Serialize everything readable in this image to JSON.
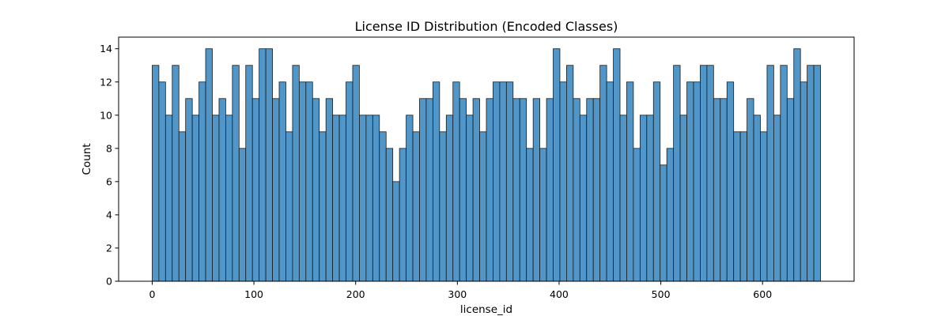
{
  "chart_data": {
    "type": "bar",
    "title": "License ID Distribution (Encoded Classes)",
    "xlabel": "license_id",
    "ylabel": "Count",
    "xlim": [
      -33,
      690
    ],
    "ylim": [
      0,
      14.7
    ],
    "x_ticks": [
      0,
      100,
      200,
      300,
      400,
      500,
      600
    ],
    "y_ticks": [
      0,
      2,
      4,
      6,
      8,
      10,
      12,
      14
    ],
    "grid": false,
    "legend": "none",
    "bins": 100,
    "bin_range": [
      0,
      657
    ],
    "values": [
      13,
      12,
      10,
      13,
      9,
      11,
      10,
      12,
      14,
      10,
      11,
      10,
      13,
      8,
      13,
      11,
      14,
      14,
      11,
      12,
      9,
      13,
      12,
      12,
      11,
      9,
      11,
      10,
      10,
      12,
      13,
      10,
      10,
      10,
      9,
      8,
      6,
      8,
      10,
      9,
      11,
      11,
      12,
      9,
      10,
      12,
      11,
      10,
      11,
      9,
      11,
      12,
      12,
      12,
      11,
      11,
      8,
      11,
      8,
      11,
      14,
      12,
      13,
      11,
      10,
      11,
      11,
      13,
      12,
      14,
      10,
      12,
      8,
      10,
      10,
      12,
      7,
      8,
      13,
      10,
      12,
      12,
      13,
      13,
      11,
      11,
      12,
      9,
      9,
      11,
      10,
      9,
      13,
      10,
      13,
      11,
      14,
      12,
      13,
      13
    ],
    "colors": {
      "bar_fill": "#5096c8",
      "bar_edge": "#1a1a1a"
    }
  }
}
